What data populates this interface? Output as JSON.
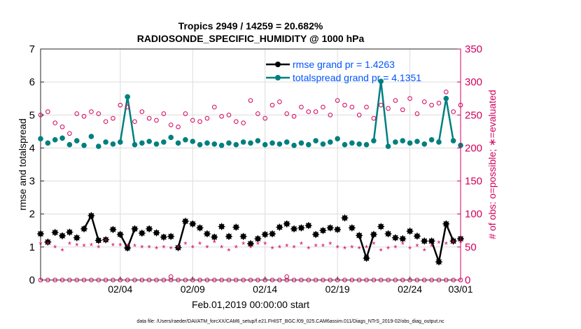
{
  "chart_data": {
    "type": "line",
    "title_line1": "Tropics 2949 / 14259 = 20.682%",
    "title_line2": "RADIOSONDE_SPECIFIC_HUMIDITY @ 1000 hPa",
    "xlabel": "Feb.01,2019 00:00:00 start",
    "ylabel_left": "rmse and totalspread",
    "ylabel_right": "# of obs: o=possible; ∗=evaluated",
    "footer": "data file: /Users/raeder/DAI/ATM_forcXX/CAM6_setup/f.e21.FHIST_BGC.f09_025.CAM6assim.011/Diags_NTrS_2019-02/obs_diag_output.nc",
    "xlim": [
      1,
      59
    ],
    "ylim_left": [
      0,
      7
    ],
    "ylim_right": [
      0,
      350
    ],
    "xticks": [
      {
        "x": 12,
        "label": "02/04"
      },
      {
        "x": 22,
        "label": "02/09"
      },
      {
        "x": 32,
        "label": "02/14"
      },
      {
        "x": 42,
        "label": "02/19"
      },
      {
        "x": 52,
        "label": "02/24"
      },
      {
        "x": 62,
        "label": "03/01"
      }
    ],
    "yticks_left": [
      0,
      1,
      2,
      3,
      4,
      5,
      6,
      7
    ],
    "yticks_right": [
      0,
      50,
      100,
      150,
      200,
      250,
      300,
      350
    ],
    "legend": [
      {
        "label": "rmse grand pr = 1.4263",
        "color": "#000000"
      },
      {
        "label": "totalspread grand pr = 4.1351",
        "color": "#007f7f"
      }
    ],
    "x": [
      1,
      2,
      3,
      4,
      5,
      6,
      7,
      8,
      9,
      10,
      11,
      12,
      13,
      14,
      15,
      16,
      17,
      18,
      19,
      20,
      21,
      22,
      23,
      24,
      25,
      26,
      27,
      28,
      29,
      30,
      31,
      32,
      33,
      34,
      35,
      36,
      37,
      38,
      39,
      40,
      41,
      42,
      43,
      44,
      45,
      46,
      47,
      48,
      49,
      50,
      51,
      52,
      53,
      54,
      55,
      56,
      57,
      58,
      59
    ],
    "rmse": [
      1.4,
      1.15,
      1.44,
      1.34,
      1.45,
      1.28,
      1.55,
      1.95,
      1.2,
      1.22,
      1.53,
      1.38,
      0.97,
      1.55,
      1.42,
      1.55,
      1.43,
      1.3,
      1.32,
      0.98,
      1.78,
      1.7,
      1.58,
      1.4,
      1.3,
      1.62,
      1.32,
      1.6,
      1.32,
      1.1,
      1.25,
      1.38,
      1.4,
      1.6,
      1.7,
      1.55,
      1.58,
      1.65,
      1.38,
      1.5,
      1.58,
      1.53,
      1.88,
      1.58,
      1.35,
      0.66,
      1.38,
      1.62,
      1.4,
      1.28,
      1.25,
      1.48,
      1.33,
      1.18,
      1.18,
      0.55,
      1.7,
      1.18,
      1.25
    ],
    "totalspread": [
      4.28,
      4.15,
      4.25,
      4.3,
      4.1,
      4.22,
      4.08,
      4.35,
      4.05,
      4.18,
      4.12,
      4.18,
      5.55,
      4.1,
      4.15,
      4.2,
      4.12,
      4.18,
      4.32,
      4.15,
      4.25,
      4.2,
      4.1,
      4.15,
      4.12,
      4.08,
      4.15,
      4.1,
      4.18,
      4.15,
      4.22,
      4.1,
      4.15,
      4.12,
      4.18,
      4.08,
      4.15,
      4.1,
      4.22,
      4.12,
      4.18,
      4.28,
      4.1,
      4.15,
      4.12,
      4.1,
      4.22,
      6.02,
      4.05,
      4.18,
      4.22,
      4.15,
      4.2,
      4.12,
      4.25,
      4.18,
      5.5,
      4.22,
      4.08
    ],
    "possible": [
      250,
      255,
      238,
      232,
      222,
      252,
      248,
      255,
      252,
      240,
      245,
      265,
      262,
      240,
      255,
      245,
      242,
      252,
      235,
      232,
      252,
      242,
      240,
      245,
      262,
      248,
      250,
      240,
      238,
      272,
      252,
      245,
      265,
      270,
      252,
      248,
      262,
      255,
      255,
      262,
      250,
      272,
      265,
      262,
      250,
      262,
      245,
      265,
      260,
      272,
      258,
      275,
      252,
      270,
      265,
      268,
      285,
      255,
      265
    ],
    "evaluated": [
      55,
      55,
      50,
      45,
      55,
      53,
      52,
      53,
      50,
      60,
      53,
      53,
      52,
      52,
      50,
      50,
      48,
      50,
      48,
      50,
      55,
      50,
      55,
      50,
      58,
      50,
      45,
      50,
      55,
      50,
      55,
      55,
      48,
      50,
      52,
      50,
      55,
      48,
      52,
      52,
      55,
      50,
      48,
      50,
      48,
      50,
      55,
      45,
      48,
      50,
      55,
      48,
      52,
      45,
      52,
      57,
      55,
      58,
      58
    ],
    "possible_zero": [
      0,
      0,
      0,
      0,
      0,
      0,
      0,
      0,
      0,
      0,
      0,
      0,
      0,
      0,
      0,
      0,
      0,
      0,
      0,
      0,
      0,
      0,
      0,
      0,
      0,
      0,
      0,
      0,
      0,
      0,
      0,
      0,
      0,
      0,
      0,
      0,
      0,
      0,
      0,
      0,
      0,
      0,
      0,
      0,
      0,
      0,
      0,
      0,
      0,
      0,
      0,
      0,
      0,
      0,
      0,
      0,
      0,
      0,
      0
    ],
    "outlier_possible": [
      {
        "x": 19,
        "value": 5
      },
      {
        "x": 35,
        "value": 5
      }
    ],
    "colors": {
      "rmse": "#000000",
      "totalspread": "#007f7f",
      "obs": "#d1005c",
      "grid": "#dcdcdc",
      "title": "#000000",
      "legend_text": "#0055ff"
    }
  }
}
